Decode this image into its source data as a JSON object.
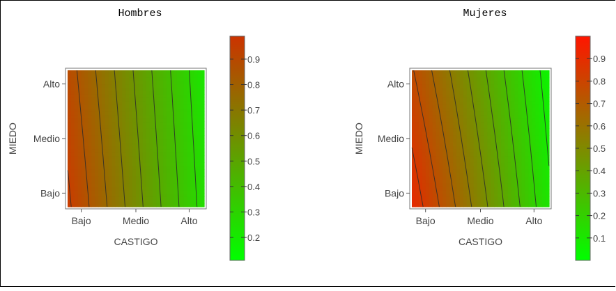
{
  "chart_data": [
    {
      "type": "heatmap",
      "subtype": "contour",
      "title": "Hombres",
      "xlabel": "CASTIGO",
      "ylabel": "MIEDO",
      "x_ticks": [
        "Bajo",
        "Medio",
        "Alto"
      ],
      "y_ticks": [
        "Bajo",
        "Medio",
        "Alto"
      ],
      "value_corners": {
        "bajo_bajo": 0.92,
        "alto_bajo": 0.16,
        "bajo_alto": 0.85,
        "alto_alto": 0.12
      },
      "contour_levels": [
        0.2,
        0.3,
        0.4,
        0.5,
        0.6,
        0.7,
        0.8,
        0.9
      ],
      "colorbar": {
        "range": [
          0.11,
          0.99
        ],
        "ticks": [
          "0.2",
          "0.3",
          "0.4",
          "0.5",
          "0.6",
          "0.7",
          "0.8",
          "0.9"
        ],
        "low_color": "#00ff00",
        "high_color": "#cc3300"
      },
      "colormap_low": "#00ff00",
      "colormap_high": "#dc2a00"
    },
    {
      "type": "heatmap",
      "subtype": "contour",
      "title": "Mujeres",
      "xlabel": "CASTIGO",
      "ylabel": "MIEDO",
      "x_ticks": [
        "Bajo",
        "Medio",
        "Alto"
      ],
      "y_ticks": [
        "Bajo",
        "Medio",
        "Alto"
      ],
      "value_corners": {
        "bajo_bajo": 0.97,
        "alto_bajo": 0.12,
        "bajo_alto": 0.81,
        "alto_alto": 0.05
      },
      "contour_levels": [
        0.1,
        0.2,
        0.3,
        0.4,
        0.5,
        0.6,
        0.7,
        0.8,
        0.9
      ],
      "colorbar": {
        "range": [
          0.0,
          1.0
        ],
        "ticks": [
          "0.1",
          "0.2",
          "0.3",
          "0.4",
          "0.5",
          "0.6",
          "0.7",
          "0.8",
          "0.9"
        ],
        "low_color": "#00ff00",
        "high_color": "#ff1500"
      },
      "colormap_low": "#00ff00",
      "colormap_high": "#ee2000"
    }
  ]
}
